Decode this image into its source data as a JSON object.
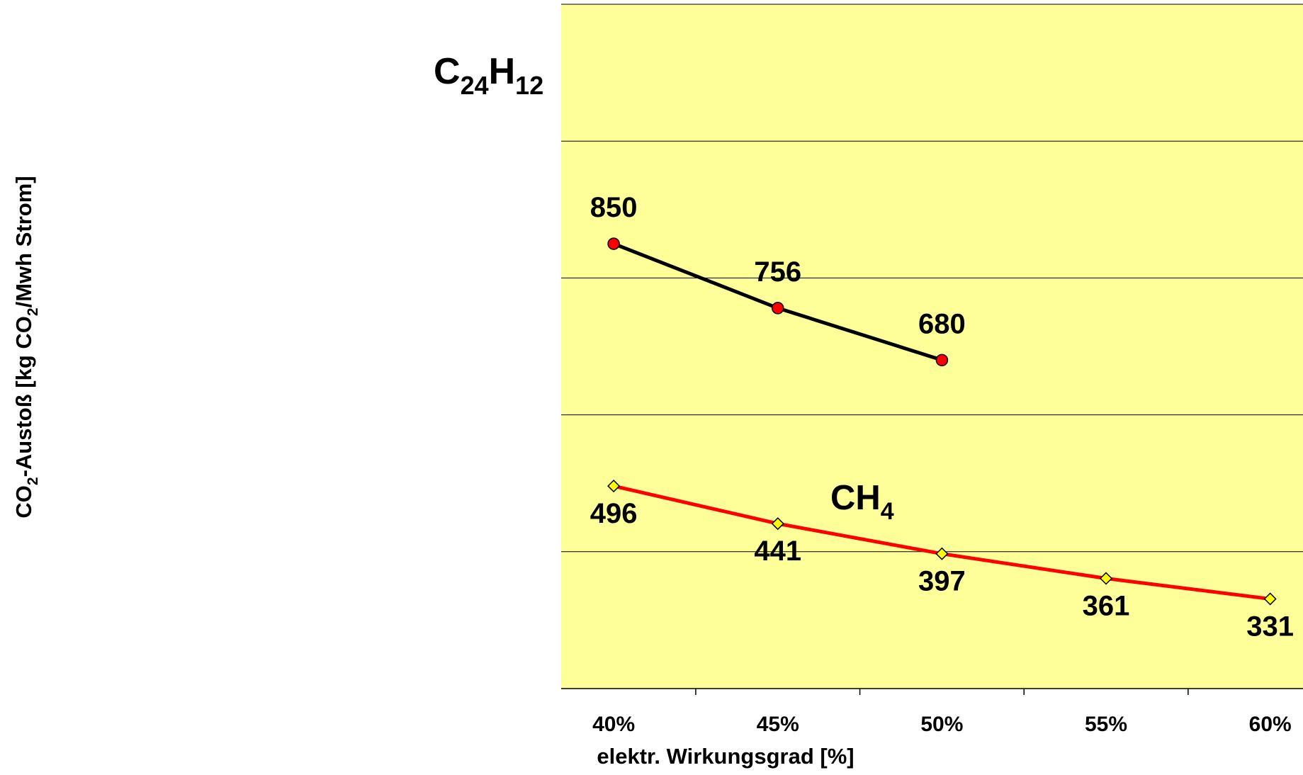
{
  "chart_data": {
    "type": "line",
    "title": "",
    "xlabel": "elektr. Wirkungsgrad [%]",
    "ylabel": {
      "prefix": "CO",
      "sub1": "2",
      "middle": "-Austoß [kg CO",
      "sub2": "2",
      "suffix": "/Mwh Strom]"
    },
    "x": [
      40,
      45,
      50,
      55,
      60
    ],
    "x_tick_labels": [
      "40%",
      "45%",
      "50%",
      "55%",
      "60%"
    ],
    "xlim": [
      38.4,
      61
    ],
    "ylim": [
      200,
      1200
    ],
    "y_gridlines": [
      400,
      600,
      800,
      1000
    ],
    "grid": true,
    "plot_background": "#ffff99",
    "series": [
      {
        "name": "C24H12",
        "x": [
          40,
          45,
          50
        ],
        "values": [
          850,
          756,
          680
        ],
        "data_labels": [
          "850",
          "756",
          "680"
        ],
        "line_color": "#000000",
        "marker": "circle",
        "marker_color": "#ff0000"
      },
      {
        "name": "CH4",
        "x": [
          40,
          45,
          50,
          55,
          60
        ],
        "values": [
          496,
          441,
          397,
          361,
          331
        ],
        "data_labels": [
          "496",
          "441",
          "397",
          "361",
          "331"
        ],
        "line_color": "#ff0000",
        "marker": "diamond",
        "marker_color": "#ffff00"
      }
    ],
    "annotations": [
      {
        "series": "C24H12",
        "base": "C",
        "sub1": "24",
        "mid": "H",
        "sub2": "12"
      },
      {
        "series": "CH4",
        "base": "CH",
        "sub1": "4"
      }
    ]
  }
}
